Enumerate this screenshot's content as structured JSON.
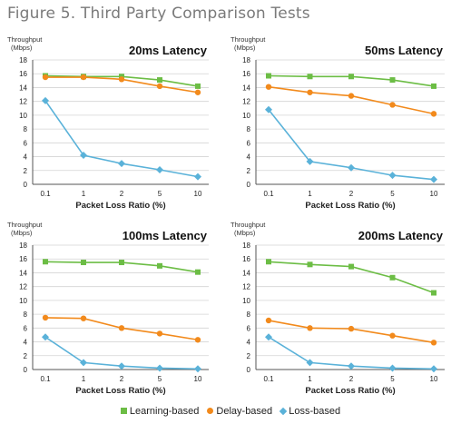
{
  "figure_title": "Figure 5. Third Party Comparison Tests",
  "colors": {
    "learning": "#6cbd45",
    "delay": "#f28a1c",
    "loss": "#5ab2d9",
    "grid": "#d4d4d4",
    "axis": "#555555"
  },
  "legend": [
    {
      "label": "Learning-based",
      "color": "#6cbd45",
      "marker": "square"
    },
    {
      "label": "Delay-based",
      "color": "#f28a1c",
      "marker": "circle"
    },
    {
      "label": "Loss-based",
      "color": "#5ab2d9",
      "marker": "diamond"
    }
  ],
  "chart_data": [
    {
      "type": "line",
      "title": "20ms Latency",
      "ylabel": "Throughput (Mbps)",
      "ylabel_lines": [
        "Throughput",
        "(Mbps)"
      ],
      "xlabel": "Packet Loss Ratio (%)",
      "categories": [
        "0.1",
        "1",
        "2",
        "5",
        "10"
      ],
      "ylim": [
        0,
        18
      ],
      "yticks": [
        "0",
        "2",
        "4",
        "6",
        "8",
        "10",
        "12",
        "14",
        "16",
        "18"
      ],
      "grid": true,
      "series": [
        {
          "name": "Learning-based",
          "values": [
            15.7,
            15.6,
            15.6,
            15.1,
            14.2
          ]
        },
        {
          "name": "Delay-based",
          "values": [
            15.5,
            15.5,
            15.2,
            14.2,
            13.3
          ]
        },
        {
          "name": "Loss-based",
          "values": [
            12.1,
            4.2,
            3.0,
            2.1,
            1.1
          ]
        }
      ]
    },
    {
      "type": "line",
      "title": "50ms Latency",
      "ylabel": "Throughput (Mbps)",
      "ylabel_lines": [
        "Throughput",
        "(Mbps)"
      ],
      "xlabel": "Packet Loss Ratio (%)",
      "categories": [
        "0.1",
        "1",
        "2",
        "5",
        "10"
      ],
      "ylim": [
        0,
        18
      ],
      "yticks": [
        "0",
        "2",
        "4",
        "6",
        "8",
        "10",
        "12",
        "14",
        "16",
        "18"
      ],
      "grid": true,
      "series": [
        {
          "name": "Learning-based",
          "values": [
            15.7,
            15.6,
            15.6,
            15.1,
            14.2
          ]
        },
        {
          "name": "Delay-based",
          "values": [
            14.1,
            13.3,
            12.8,
            11.5,
            10.2
          ]
        },
        {
          "name": "Loss-based",
          "values": [
            10.8,
            3.3,
            2.4,
            1.3,
            0.7
          ]
        }
      ]
    },
    {
      "type": "line",
      "title": "100ms Latency",
      "ylabel": "Throughput (Mbps)",
      "ylabel_lines": [
        "Throughput",
        "(Mbps)"
      ],
      "xlabel": "Packet Loss Ratio (%)",
      "categories": [
        "0.1",
        "1",
        "2",
        "5",
        "10"
      ],
      "ylim": [
        0,
        18
      ],
      "yticks": [
        "0",
        "2",
        "4",
        "6",
        "8",
        "10",
        "12",
        "14",
        "16",
        "18"
      ],
      "grid": true,
      "series": [
        {
          "name": "Learning-based",
          "values": [
            15.6,
            15.5,
            15.5,
            15.0,
            14.1
          ]
        },
        {
          "name": "Delay-based",
          "values": [
            7.5,
            7.4,
            6.0,
            5.2,
            4.3
          ]
        },
        {
          "name": "Loss-based",
          "values": [
            4.7,
            1.0,
            0.5,
            0.2,
            0.1
          ]
        }
      ]
    },
    {
      "type": "line",
      "title": "200ms Latency",
      "ylabel": "Throughput (Mbps)",
      "ylabel_lines": [
        "Throughput",
        "(Mbps)"
      ],
      "xlabel": "Packet Loss Ratio (%)",
      "categories": [
        "0.1",
        "1",
        "2",
        "5",
        "10"
      ],
      "ylim": [
        0,
        18
      ],
      "yticks": [
        "0",
        "2",
        "4",
        "6",
        "8",
        "10",
        "12",
        "14",
        "16",
        "18"
      ],
      "grid": true,
      "series": [
        {
          "name": "Learning-based",
          "values": [
            15.6,
            15.2,
            14.9,
            13.3,
            11.1
          ]
        },
        {
          "name": "Delay-based",
          "values": [
            7.1,
            6.0,
            5.9,
            4.9,
            3.9
          ]
        },
        {
          "name": "Loss-based",
          "values": [
            4.7,
            1.0,
            0.5,
            0.2,
            0.1
          ]
        }
      ]
    }
  ]
}
